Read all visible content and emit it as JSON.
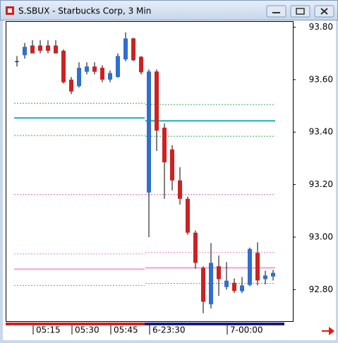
{
  "chart_data": {
    "type": "candlestick",
    "title": "S.SBUX - Starbucks Corp, 3 Min",
    "categories": [
      null,
      null,
      "05:15",
      null,
      null,
      null,
      null,
      "05:30",
      null,
      null,
      null,
      null,
      "05:45",
      null,
      null,
      null,
      null,
      "6-23:30",
      null,
      null,
      null,
      null,
      null,
      null,
      null,
      null,
      null,
      "7-00:00",
      null,
      null,
      null,
      null,
      null,
      null
    ],
    "open": [
      93.67,
      93.693,
      93.73,
      93.73,
      93.73,
      93.73,
      93.71,
      93.6,
      93.575,
      93.63,
      93.65,
      93.645,
      93.6,
      93.61,
      93.677,
      93.757,
      93.687,
      93.17,
      93.631,
      93.417,
      93.334,
      93.216,
      93.146,
      93.017,
      92.883,
      92.744,
      92.889,
      92.81,
      92.826,
      92.794,
      92.818,
      92.94,
      92.84,
      92.85
    ],
    "high": [
      93.69,
      93.74,
      93.75,
      93.75,
      93.75,
      93.75,
      93.715,
      93.61,
      93.666,
      93.666,
      93.666,
      93.655,
      93.635,
      93.7,
      93.78,
      93.76,
      93.69,
      93.639,
      93.639,
      93.433,
      93.35,
      93.266,
      93.154,
      93.025,
      92.889,
      92.977,
      92.93,
      92.905,
      92.843,
      92.848,
      92.96,
      92.98,
      92.872,
      92.875
    ],
    "low": [
      93.65,
      93.68,
      93.7,
      93.7,
      93.7,
      93.7,
      93.585,
      93.545,
      93.57,
      93.62,
      93.62,
      93.59,
      93.59,
      93.607,
      93.67,
      93.67,
      93.62,
      93.0,
      93.328,
      93.146,
      93.178,
      93.124,
      93.009,
      92.88,
      92.71,
      92.728,
      92.776,
      92.8,
      92.787,
      92.787,
      92.813,
      92.816,
      92.82,
      92.835
    ],
    "close": [
      93.67,
      93.725,
      93.7,
      93.71,
      93.71,
      93.7,
      93.59,
      93.555,
      93.645,
      93.65,
      93.63,
      93.6,
      93.625,
      93.69,
      93.757,
      93.674,
      93.628,
      93.631,
      93.406,
      93.285,
      93.216,
      93.146,
      93.017,
      92.902,
      92.754,
      92.902,
      92.84,
      92.834,
      92.795,
      92.816,
      92.955,
      92.835,
      92.854,
      92.864
    ],
    "up_color": "#2f6fd0",
    "down_color": "#cc2222",
    "doji_color": "#000000",
    "lines": [
      {
        "color": "#33aa55",
        "dash": true,
        "values": [
          93.51,
          93.505
        ]
      },
      {
        "color": "#18b4b4",
        "dash": false,
        "values": [
          93.454,
          93.443
        ]
      },
      {
        "color": "#33aa55",
        "dash": true,
        "values": [
          93.387,
          93.384
        ]
      },
      {
        "color": "#d46aa8",
        "dash": true,
        "values": [
          93.162,
          93.162
        ]
      },
      {
        "color": "#e98cc8",
        "dash": true,
        "values": [
          92.936,
          92.942
        ]
      },
      {
        "color": "#f2a0d4",
        "dash": false,
        "values": [
          92.878,
          92.883
        ]
      },
      {
        "color": "#d46aa8",
        "dash": true,
        "values": [
          92.816,
          92.824
        ]
      }
    ],
    "ylim": [
      92.68,
      93.82
    ],
    "yticks": [
      {
        "value": 92.8,
        "label": "92.80"
      },
      {
        "value": 93.0,
        "label": "93.00"
      },
      {
        "value": 93.2,
        "label": "93.20"
      },
      {
        "value": 93.4,
        "label": "93.40"
      },
      {
        "value": 93.6,
        "label": "93.60"
      },
      {
        "value": 93.8,
        "label": "93.80"
      }
    ]
  }
}
